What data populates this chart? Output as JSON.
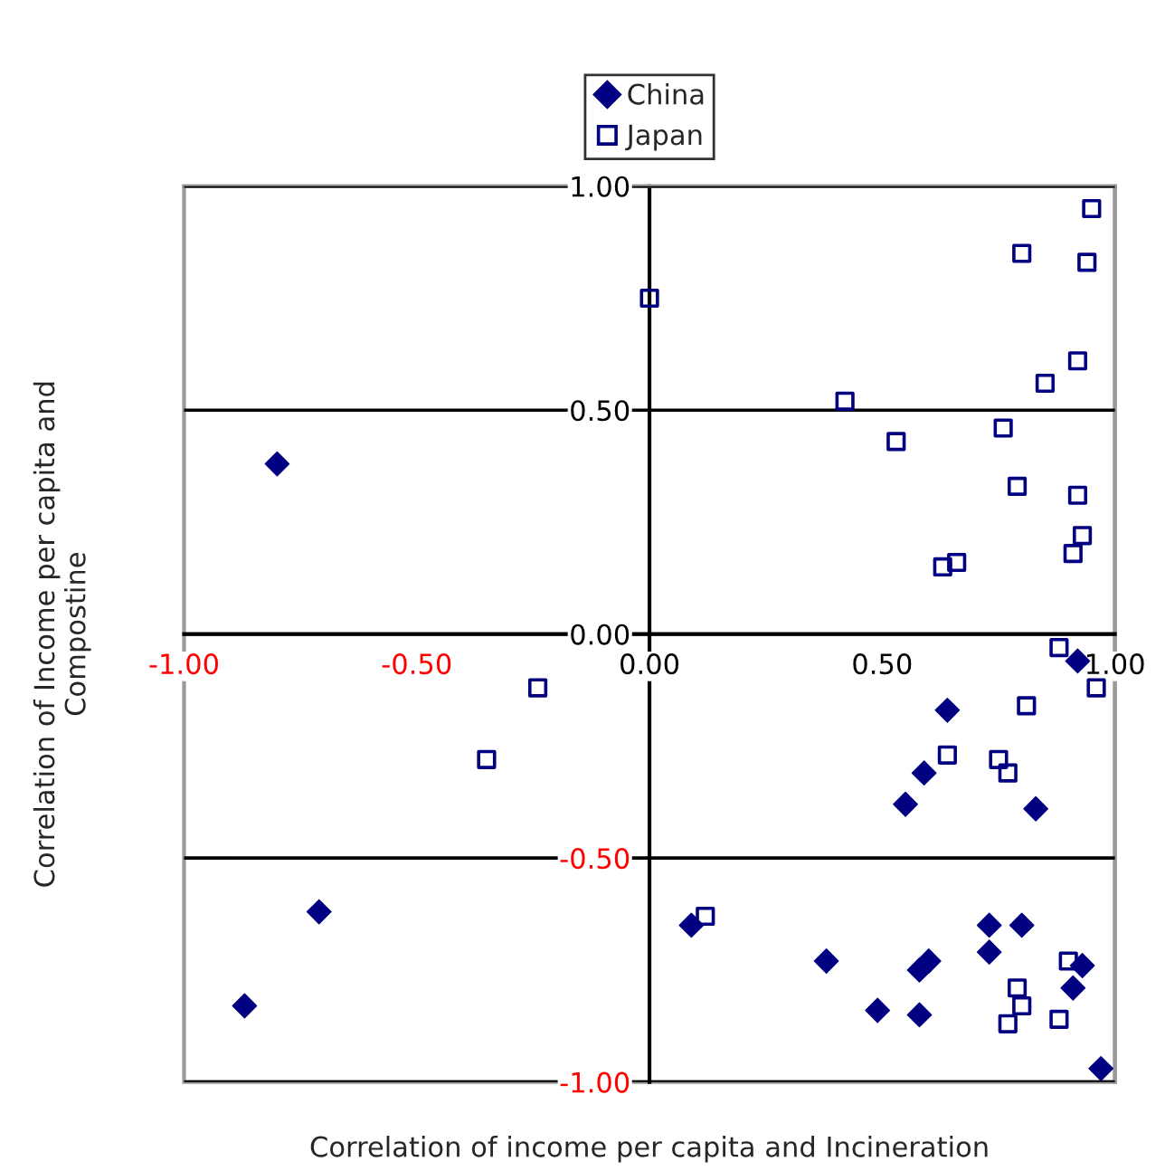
{
  "chart_data": {
    "type": "scatter",
    "xlabel": "Correlation of income per capita and Incineration",
    "ylabel": "Correlation of Income per capita and\nCompostine",
    "xlim": [
      -1.0,
      1.0
    ],
    "ylim": [
      -1.0,
      1.0
    ],
    "xticks": [
      {
        "value": -1.0,
        "label": "-1.00"
      },
      {
        "value": -0.5,
        "label": "-0.50"
      },
      {
        "value": 0.0,
        "label": "0.00"
      },
      {
        "value": 0.5,
        "label": "0.50"
      },
      {
        "value": 1.0,
        "label": "1.00"
      }
    ],
    "yticks": [
      {
        "value": -1.0,
        "label": "-1.00"
      },
      {
        "value": -0.5,
        "label": "-0.50"
      },
      {
        "value": 0.0,
        "label": "0.00"
      },
      {
        "value": 0.5,
        "label": "0.50"
      },
      {
        "value": 1.0,
        "label": "1.00"
      }
    ],
    "grid": "y",
    "legend": "top",
    "series": [
      {
        "name": "China",
        "color": "#000080",
        "marker": "diamond",
        "x": [
          -0.8,
          -0.71,
          -0.87,
          0.09,
          0.92,
          0.64,
          0.59,
          0.55,
          0.83,
          0.73,
          0.8,
          0.73,
          0.38,
          0.58,
          0.6,
          0.93,
          0.91,
          0.49,
          0.58,
          0.97
        ],
        "values": [
          0.38,
          -0.62,
          -0.83,
          -0.65,
          -0.06,
          -0.17,
          -0.31,
          -0.38,
          -0.39,
          -0.65,
          -0.65,
          -0.71,
          -0.73,
          -0.75,
          -0.73,
          -0.74,
          -0.79,
          -0.84,
          -0.85,
          -0.97
        ]
      },
      {
        "name": "Japan",
        "color": "#000080",
        "marker": "square",
        "x": [
          0.0,
          -0.24,
          -0.35,
          0.12,
          0.95,
          0.8,
          0.94,
          0.92,
          0.85,
          0.42,
          0.53,
          0.76,
          0.79,
          0.92,
          0.93,
          0.91,
          0.63,
          0.66,
          0.88,
          0.96,
          0.81,
          0.64,
          0.75,
          0.77,
          0.9,
          0.79,
          0.8,
          0.77,
          0.88
        ],
        "values": [
          0.75,
          -0.12,
          -0.28,
          -0.63,
          0.95,
          0.85,
          0.83,
          0.61,
          0.56,
          0.52,
          0.43,
          0.46,
          0.33,
          0.31,
          0.22,
          0.18,
          0.15,
          0.16,
          -0.03,
          -0.12,
          -0.16,
          -0.27,
          -0.28,
          -0.31,
          -0.73,
          -0.79,
          -0.83,
          -0.87,
          -0.86
        ]
      }
    ]
  }
}
